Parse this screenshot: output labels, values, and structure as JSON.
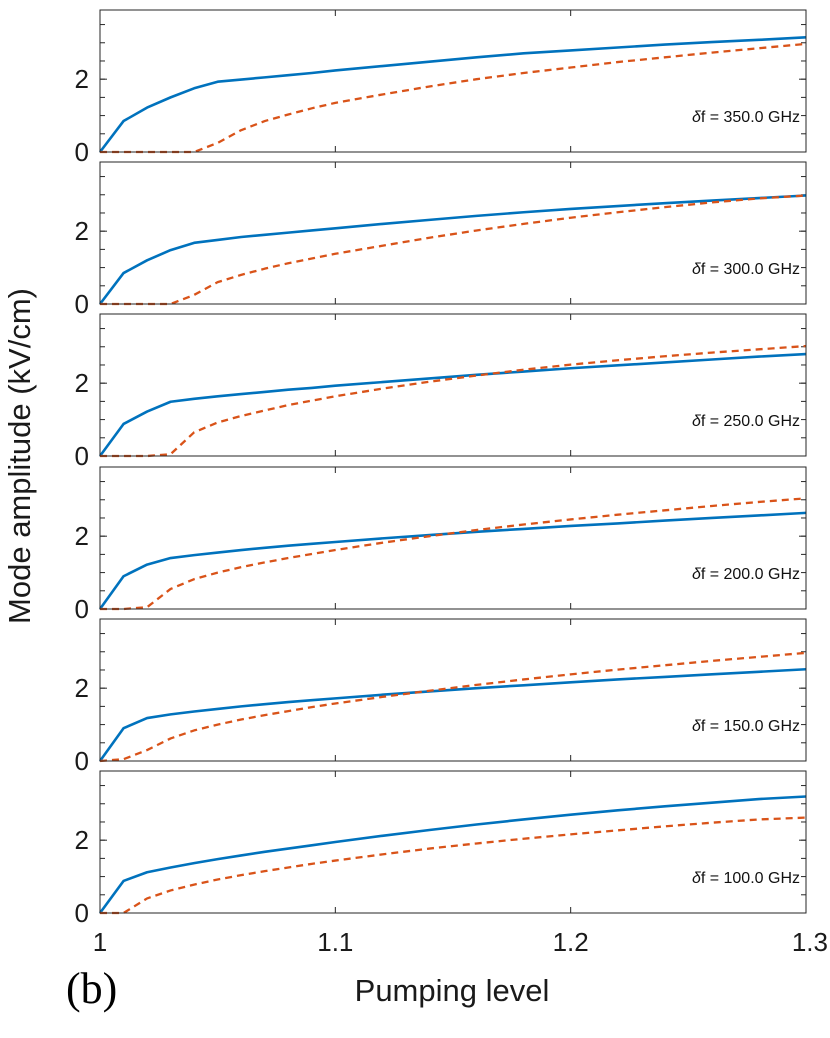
{
  "chart_data": {
    "type": "line",
    "xlabel": "Pumping level",
    "ylabel": "Mode amplitude (kV/cm)",
    "xlim": [
      1,
      1.3
    ],
    "x_ticks": [
      "1",
      "1.1",
      "1.2",
      "1.3"
    ],
    "ylim": [
      0,
      3.9
    ],
    "y_ticks": [
      "0",
      "2"
    ],
    "panel_label": "(b)",
    "annotation_prefix": "δ",
    "colors": {
      "solid": "#0072BD",
      "dashed": "#D95319"
    },
    "x": [
      1.0,
      1.01,
      1.02,
      1.03,
      1.04,
      1.05,
      1.06,
      1.07,
      1.08,
      1.09,
      1.1,
      1.12,
      1.14,
      1.16,
      1.18,
      1.2,
      1.22,
      1.24,
      1.26,
      1.28,
      1.3
    ],
    "panels": [
      {
        "label": "f = 350.0 GHz",
        "series": [
          {
            "name": "solid",
            "style": "solid",
            "values": [
              0,
              0.85,
              1.22,
              1.5,
              1.75,
              1.93,
              1.99,
              2.05,
              2.11,
              2.17,
              2.24,
              2.36,
              2.48,
              2.6,
              2.71,
              2.79,
              2.87,
              2.95,
              3.02,
              3.08,
              3.15
            ]
          },
          {
            "name": "dashed",
            "style": "dashed",
            "values": [
              0,
              0,
              0,
              0,
              0,
              0.25,
              0.6,
              0.85,
              1.03,
              1.2,
              1.35,
              1.58,
              1.8,
              2.0,
              2.17,
              2.32,
              2.47,
              2.6,
              2.73,
              2.85,
              2.97
            ]
          }
        ]
      },
      {
        "label": "f = 300.0 GHz",
        "series": [
          {
            "name": "solid",
            "style": "solid",
            "values": [
              0,
              0.85,
              1.2,
              1.48,
              1.68,
              1.76,
              1.84,
              1.9,
              1.96,
              2.02,
              2.08,
              2.2,
              2.31,
              2.42,
              2.52,
              2.61,
              2.69,
              2.77,
              2.84,
              2.91,
              2.98
            ]
          },
          {
            "name": "dashed",
            "style": "dashed",
            "values": [
              0,
              0,
              0,
              0,
              0.25,
              0.6,
              0.8,
              0.97,
              1.12,
              1.25,
              1.38,
              1.6,
              1.82,
              2.02,
              2.2,
              2.37,
              2.52,
              2.66,
              2.79,
              2.9,
              2.98
            ]
          }
        ]
      },
      {
        "label": "f = 250.0 GHz",
        "series": [
          {
            "name": "solid",
            "style": "solid",
            "values": [
              0,
              0.88,
              1.22,
              1.49,
              1.57,
              1.64,
              1.7,
              1.76,
              1.82,
              1.87,
              1.93,
              2.03,
              2.13,
              2.23,
              2.32,
              2.41,
              2.49,
              2.57,
              2.65,
              2.73,
              2.8
            ]
          },
          {
            "name": "dashed",
            "style": "dashed",
            "values": [
              0,
              0,
              0,
              0.05,
              0.65,
              0.92,
              1.1,
              1.25,
              1.4,
              1.52,
              1.64,
              1.85,
              2.04,
              2.21,
              2.37,
              2.51,
              2.63,
              2.74,
              2.84,
              2.93,
              3.02
            ]
          }
        ]
      },
      {
        "label": "f = 200.0 GHz",
        "series": [
          {
            "name": "solid",
            "style": "solid",
            "values": [
              0,
              0.9,
              1.22,
              1.4,
              1.48,
              1.55,
              1.62,
              1.68,
              1.74,
              1.79,
              1.84,
              1.94,
              2.03,
              2.12,
              2.2,
              2.28,
              2.35,
              2.43,
              2.5,
              2.57,
              2.64
            ]
          },
          {
            "name": "dashed",
            "style": "dashed",
            "values": [
              0,
              0,
              0.05,
              0.55,
              0.82,
              1.0,
              1.15,
              1.28,
              1.4,
              1.51,
              1.62,
              1.82,
              2.0,
              2.17,
              2.32,
              2.46,
              2.59,
              2.71,
              2.83,
              2.94,
              3.04
            ]
          }
        ]
      },
      {
        "label": "f = 150.0 GHz",
        "series": [
          {
            "name": "solid",
            "style": "solid",
            "values": [
              0,
              0.9,
              1.18,
              1.28,
              1.36,
              1.43,
              1.5,
              1.56,
              1.62,
              1.67,
              1.72,
              1.82,
              1.91,
              2.0,
              2.08,
              2.16,
              2.24,
              2.31,
              2.38,
              2.45,
              2.52
            ]
          },
          {
            "name": "dashed",
            "style": "dashed",
            "values": [
              0,
              0.05,
              0.3,
              0.62,
              0.84,
              1.0,
              1.14,
              1.26,
              1.37,
              1.48,
              1.58,
              1.76,
              1.93,
              2.09,
              2.24,
              2.38,
              2.51,
              2.63,
              2.75,
              2.86,
              2.97
            ]
          }
        ]
      },
      {
        "label": "f = 100.0 GHz",
        "series": [
          {
            "name": "solid",
            "style": "solid",
            "values": [
              0,
              0.88,
              1.12,
              1.25,
              1.37,
              1.48,
              1.58,
              1.68,
              1.77,
              1.86,
              1.95,
              2.12,
              2.28,
              2.43,
              2.57,
              2.7,
              2.82,
              2.93,
              3.03,
              3.13,
              3.2
            ]
          },
          {
            "name": "dashed",
            "style": "dashed",
            "values": [
              0,
              0,
              0.4,
              0.62,
              0.78,
              0.92,
              1.04,
              1.15,
              1.25,
              1.35,
              1.44,
              1.61,
              1.77,
              1.91,
              2.04,
              2.16,
              2.27,
              2.38,
              2.48,
              2.57,
              2.62
            ]
          }
        ]
      }
    ]
  }
}
